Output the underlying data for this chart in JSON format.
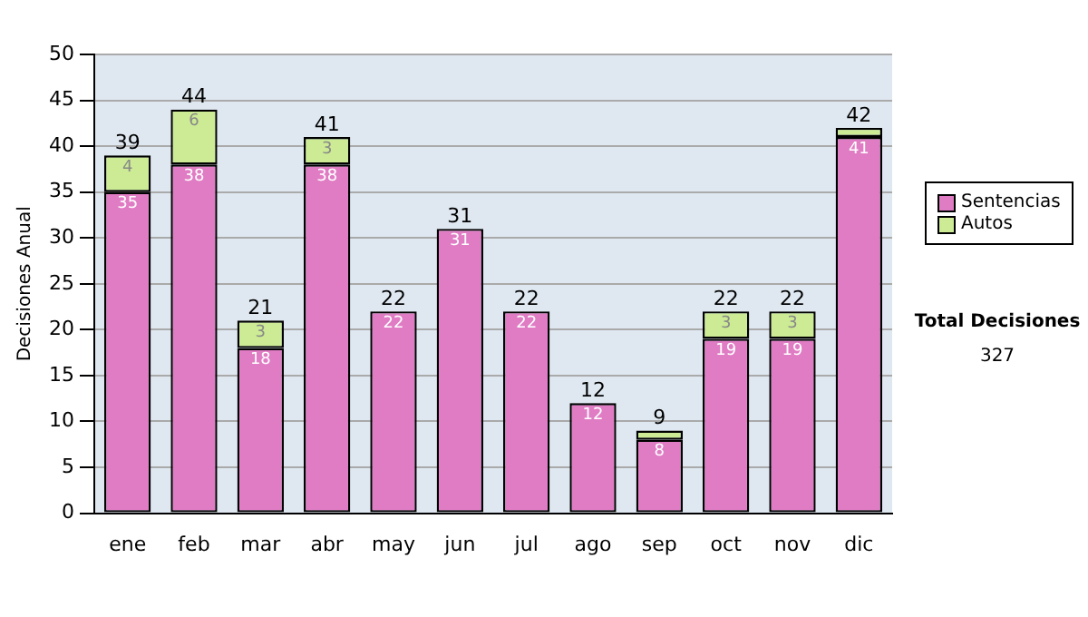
{
  "chart_data": {
    "type": "bar",
    "stacked": true,
    "ylabel": "Decisiones Anual",
    "categories": [
      "ene",
      "feb",
      "mar",
      "abr",
      "may",
      "jun",
      "jul",
      "ago",
      "sep",
      "oct",
      "nov",
      "dic"
    ],
    "series": [
      {
        "name": "Sentencias",
        "color": "#e07cc4",
        "values": [
          35,
          38,
          18,
          38,
          22,
          31,
          22,
          12,
          8,
          19,
          19,
          41
        ],
        "value_labels": [
          "35",
          "38",
          "18",
          "38",
          "22",
          "31",
          "22",
          "12",
          "8",
          "19",
          "19",
          "41"
        ]
      },
      {
        "name": "Autos",
        "color": "#cceb94",
        "values": [
          4,
          6,
          3,
          3,
          0,
          0,
          0,
          0,
          1,
          3,
          3,
          1
        ],
        "value_labels": [
          "4",
          "6",
          "3",
          "3",
          null,
          null,
          null,
          null,
          null,
          "3",
          "3",
          null
        ]
      }
    ],
    "totals": [
      "39",
      "44",
      "21",
      "41",
      "22",
      "31",
      "22",
      "12",
      "9",
      "22",
      "22",
      "42"
    ],
    "ylim": [
      0,
      50
    ],
    "yticks": [
      0,
      5,
      10,
      15,
      20,
      25,
      30,
      35,
      40,
      45,
      50
    ],
    "grid": "y",
    "legend": "right",
    "annotations": [
      "Total Decisiones",
      "327"
    ]
  }
}
